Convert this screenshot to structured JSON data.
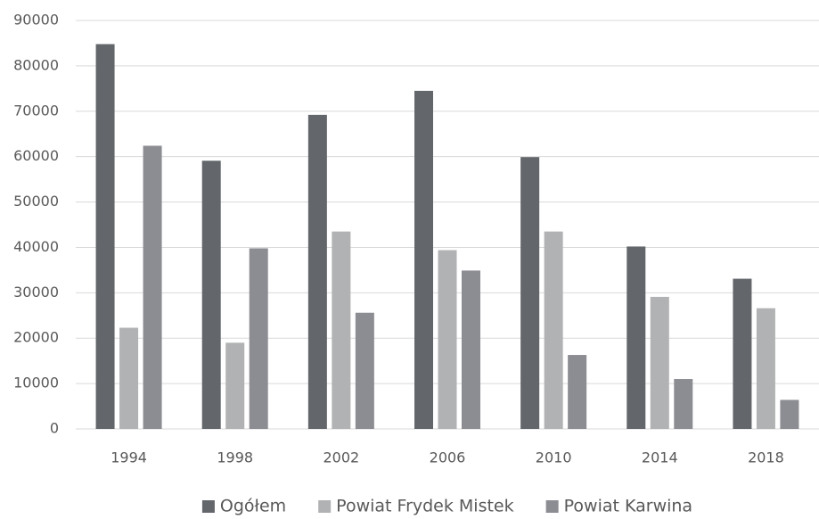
{
  "chart_data": {
    "type": "bar",
    "categories": [
      "1994",
      "1998",
      "2002",
      "2006",
      "2010",
      "2014",
      "2018"
    ],
    "series": [
      {
        "name": "Ogółem",
        "color": "#63666a",
        "values": [
          84800,
          59100,
          69200,
          74500,
          59900,
          40200,
          33100
        ]
      },
      {
        "name": "Powiat Frydek Mistek",
        "color": "#b1b2b4",
        "values": [
          22300,
          19000,
          43500,
          39400,
          43500,
          29100,
          26600
        ]
      },
      {
        "name": "Powiat Karwina",
        "color": "#8c8d92",
        "values": [
          62400,
          39800,
          25600,
          34900,
          16300,
          11000,
          6400
        ]
      }
    ],
    "ylim": [
      0,
      90000
    ],
    "yticks": [
      0,
      10000,
      20000,
      30000,
      40000,
      50000,
      60000,
      70000,
      80000,
      90000
    ],
    "grid": true,
    "legend": "bottom"
  }
}
